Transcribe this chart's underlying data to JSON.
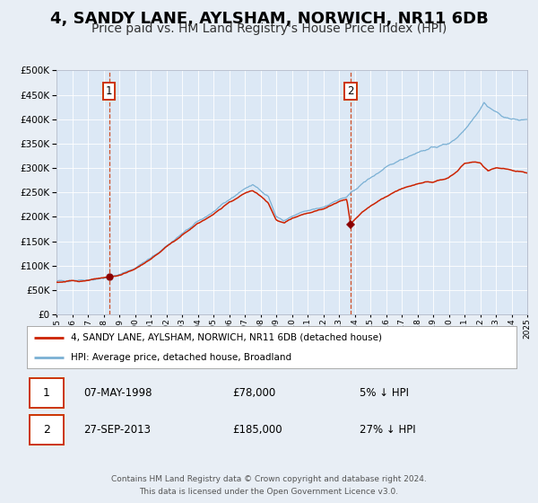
{
  "title": "4, SANDY LANE, AYLSHAM, NORWICH, NR11 6DB",
  "subtitle": "Price paid vs. HM Land Registry's House Price Index (HPI)",
  "title_fontsize": 13,
  "subtitle_fontsize": 10,
  "bg_color": "#e8eef5",
  "plot_bg_color": "#dce8f5",
  "grid_color": "#ffffff",
  "sale1_date": 1998.35,
  "sale1_price": 78000,
  "sale2_date": 2013.74,
  "sale2_price": 185000,
  "hpi_color": "#7ab0d4",
  "price_color": "#cc2200",
  "marker_color": "#8b0000",
  "legend_label_price": "4, SANDY LANE, AYLSHAM, NORWICH, NR11 6DB (detached house)",
  "legend_label_hpi": "HPI: Average price, detached house, Broadland",
  "table_row1": [
    "1",
    "07-MAY-1998",
    "£78,000",
    "5% ↓ HPI"
  ],
  "table_row2": [
    "2",
    "27-SEP-2013",
    "£185,000",
    "27% ↓ HPI"
  ],
  "footer1": "Contains HM Land Registry data © Crown copyright and database right 2024.",
  "footer2": "This data is licensed under the Open Government Licence v3.0.",
  "xmin": 1995,
  "xmax": 2025,
  "ymin": 0,
  "ymax": 500000,
  "hpi_knots_x": [
    1995.0,
    1995.5,
    1996.0,
    1996.5,
    1997.0,
    1997.5,
    1998.0,
    1998.5,
    1999.0,
    1999.5,
    2000.0,
    2000.5,
    2001.0,
    2001.5,
    2002.0,
    2002.5,
    2003.0,
    2003.5,
    2004.0,
    2004.5,
    2005.0,
    2005.5,
    2006.0,
    2006.5,
    2007.0,
    2007.25,
    2007.5,
    2008.0,
    2008.5,
    2009.0,
    2009.5,
    2010.0,
    2010.5,
    2011.0,
    2011.5,
    2012.0,
    2012.5,
    2013.0,
    2013.5,
    2014.0,
    2014.5,
    2015.0,
    2015.5,
    2016.0,
    2016.5,
    2017.0,
    2017.5,
    2018.0,
    2018.5,
    2019.0,
    2019.5,
    2020.0,
    2020.5,
    2021.0,
    2021.5,
    2022.0,
    2022.25,
    2022.5,
    2023.0,
    2023.5,
    2024.0,
    2024.5,
    2025.0
  ],
  "hpi_knots_y": [
    68000,
    68500,
    70000,
    70500,
    71000,
    72000,
    74000,
    77000,
    82000,
    88000,
    95000,
    105000,
    115000,
    127000,
    140000,
    152000,
    165000,
    177000,
    190000,
    200000,
    210000,
    222000,
    235000,
    246000,
    258000,
    262000,
    265000,
    255000,
    242000,
    200000,
    192000,
    200000,
    207000,
    212000,
    216000,
    220000,
    228000,
    235000,
    240000,
    255000,
    268000,
    280000,
    290000,
    300000,
    310000,
    318000,
    325000,
    332000,
    337000,
    342000,
    346000,
    350000,
    362000,
    378000,
    400000,
    420000,
    435000,
    425000,
    415000,
    405000,
    400000,
    398000,
    400000
  ],
  "price_knots_x": [
    1995.0,
    1995.5,
    1996.0,
    1996.5,
    1997.0,
    1997.5,
    1998.0,
    1998.5,
    1999.0,
    1999.5,
    2000.0,
    2000.5,
    2001.0,
    2001.5,
    2002.0,
    2002.5,
    2003.0,
    2003.5,
    2004.0,
    2004.5,
    2005.0,
    2005.5,
    2006.0,
    2006.5,
    2007.0,
    2007.25,
    2007.5,
    2008.0,
    2008.5,
    2009.0,
    2009.5,
    2010.0,
    2010.5,
    2011.0,
    2011.5,
    2012.0,
    2012.5,
    2013.0,
    2013.5,
    2013.74,
    2014.0,
    2014.5,
    2015.0,
    2015.5,
    2016.0,
    2016.5,
    2017.0,
    2017.5,
    2018.0,
    2018.5,
    2019.0,
    2019.5,
    2020.0,
    2020.5,
    2021.0,
    2021.5,
    2022.0,
    2022.5,
    2023.0,
    2023.5,
    2024.0,
    2024.5,
    2025.0
  ],
  "price_knots_y": [
    66000,
    67000,
    68000,
    69000,
    70000,
    72000,
    74000,
    78000,
    80000,
    86000,
    93000,
    103000,
    113000,
    125000,
    138000,
    150000,
    162000,
    174000,
    186000,
    196000,
    205000,
    217000,
    230000,
    239000,
    248000,
    252000,
    254000,
    242000,
    228000,
    195000,
    188000,
    196000,
    202000,
    208000,
    212000,
    216000,
    224000,
    232000,
    236000,
    185000,
    195000,
    210000,
    222000,
    232000,
    242000,
    250000,
    257000,
    263000,
    267000,
    270000,
    272000,
    275000,
    280000,
    292000,
    310000,
    312000,
    310000,
    295000,
    300000,
    298000,
    295000,
    292000,
    290000
  ]
}
